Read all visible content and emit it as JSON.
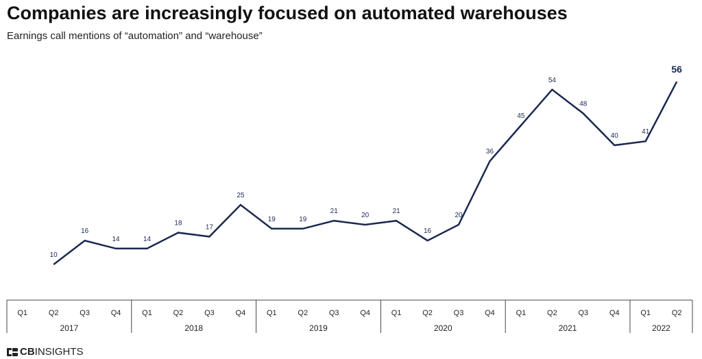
{
  "title": "Companies are increasingly focused on automated warehouses",
  "subtitle": "Earnings call mentions of “automation” and “warehouse”",
  "logo": {
    "cb": "CB",
    "insights": "INSIGHTS"
  },
  "colors": {
    "line": "#1a2750",
    "label": "#1a2750",
    "axis": "#444444"
  },
  "chart_data": {
    "type": "line",
    "title": "Companies are increasingly focused on automated warehouses",
    "subtitle": "Earnings call mentions of “automation” and “warehouse”",
    "xlabel": "",
    "ylabel": "",
    "grid": false,
    "x": [
      "2017 Q2",
      "2017 Q3",
      "2017 Q4",
      "2018 Q1",
      "2018 Q2",
      "2018 Q3",
      "2018 Q4",
      "2019 Q1",
      "2019 Q2",
      "2019 Q3",
      "2019 Q4",
      "2020 Q1",
      "2020 Q2",
      "2020 Q3",
      "2020 Q4",
      "2021 Q1",
      "2021 Q2",
      "2021 Q3",
      "2021 Q4",
      "2022 Q1",
      "2022 Q2"
    ],
    "values": [
      10,
      16,
      14,
      14,
      18,
      17,
      25,
      19,
      19,
      21,
      20,
      21,
      16,
      20,
      36,
      45,
      54,
      48,
      40,
      41,
      56
    ],
    "quarter_ticks": [
      "Q1",
      "Q2",
      "Q3",
      "Q4",
      "Q1",
      "Q2",
      "Q3",
      "Q4",
      "Q1",
      "Q2",
      "Q3",
      "Q4",
      "Q1",
      "Q2",
      "Q3",
      "Q4",
      "Q1",
      "Q2",
      "Q3",
      "Q4",
      "Q1",
      "Q2"
    ],
    "years": [
      {
        "label": "2017",
        "quarters": 4
      },
      {
        "label": "2018",
        "quarters": 4
      },
      {
        "label": "2019",
        "quarters": 4
      },
      {
        "label": "2020",
        "quarters": 4
      },
      {
        "label": "2021",
        "quarters": 4
      },
      {
        "label": "2022",
        "quarters": 2
      }
    ]
  }
}
